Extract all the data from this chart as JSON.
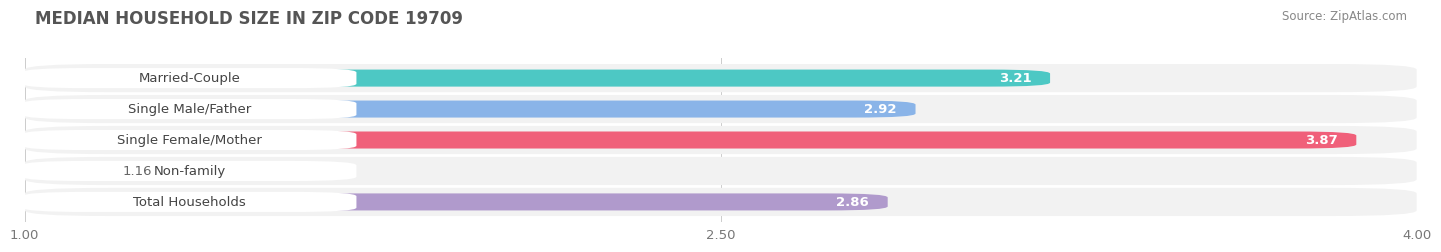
{
  "title": "MEDIAN HOUSEHOLD SIZE IN ZIP CODE 19709",
  "source": "Source: ZipAtlas.com",
  "categories": [
    "Married-Couple",
    "Single Male/Father",
    "Single Female/Mother",
    "Non-family",
    "Total Households"
  ],
  "values": [
    3.21,
    2.92,
    3.87,
    1.16,
    2.86
  ],
  "bar_colors": [
    "#4dc8c4",
    "#8ab4e8",
    "#f0607a",
    "#f5c89a",
    "#b09acc"
  ],
  "bar_bg_color": "#ebebeb",
  "xlim_start": 1.0,
  "xlim_end": 4.0,
  "xticks": [
    1.0,
    2.5,
    4.0
  ],
  "xticklabels": [
    "1.00",
    "2.50",
    "4.00"
  ],
  "label_fontsize": 9.5,
  "value_fontsize": 9.5,
  "title_fontsize": 12,
  "source_fontsize": 8.5,
  "bar_height": 0.55,
  "label_color": "#444444",
  "value_color_inside": "#ffffff",
  "value_color_outside": "#666666",
  "title_color": "#555555",
  "source_color": "#888888",
  "background_color": "#ffffff",
  "grid_color": "#cccccc",
  "row_bg_color": "#f2f2f2"
}
